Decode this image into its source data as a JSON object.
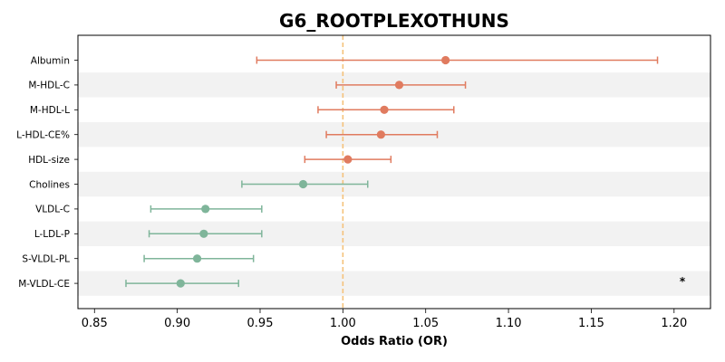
{
  "chart_data": {
    "type": "forest",
    "title": "G6_ROOTPLEXOTHUNS",
    "xlabel": "Odds Ratio (OR)",
    "ylabel": "",
    "xlim": [
      0.84,
      1.222
    ],
    "xticks": [
      0.85,
      0.9,
      0.95,
      1.0,
      1.05,
      1.1,
      1.15,
      1.2
    ],
    "xtick_labels": [
      "0.85",
      "0.90",
      "0.95",
      "1.00",
      "1.05",
      "1.10",
      "1.15",
      "1.20"
    ],
    "reference_line": 1.0,
    "grid": false,
    "row_shading": "alternating",
    "colors": {
      "positive": "#E07B5F",
      "negative": "#7FB59A",
      "reference_line": "#F5C27A",
      "shading": "#F2F2F2"
    },
    "rows": [
      {
        "label": "Albumin",
        "or": 1.062,
        "lower": 0.948,
        "upper": 1.19,
        "group": "positive"
      },
      {
        "label": "M-HDL-C",
        "or": 1.034,
        "lower": 0.996,
        "upper": 1.074,
        "group": "positive"
      },
      {
        "label": "M-HDL-L",
        "or": 1.025,
        "lower": 0.985,
        "upper": 1.067,
        "group": "positive"
      },
      {
        "label": "L-HDL-CE%",
        "or": 1.023,
        "lower": 0.99,
        "upper": 1.057,
        "group": "positive"
      },
      {
        "label": "HDL-size",
        "or": 1.003,
        "lower": 0.977,
        "upper": 1.029,
        "group": "positive"
      },
      {
        "label": "Cholines",
        "or": 0.976,
        "lower": 0.939,
        "upper": 1.015,
        "group": "negative"
      },
      {
        "label": "VLDL-C",
        "or": 0.917,
        "lower": 0.884,
        "upper": 0.951,
        "group": "negative"
      },
      {
        "label": "L-LDL-P",
        "or": 0.916,
        "lower": 0.883,
        "upper": 0.951,
        "group": "negative"
      },
      {
        "label": "S-VLDL-PL",
        "or": 0.912,
        "lower": 0.88,
        "upper": 0.946,
        "group": "negative"
      },
      {
        "label": "M-VLDL-CE",
        "or": 0.902,
        "lower": 0.869,
        "upper": 0.937,
        "group": "negative",
        "annotation": "*"
      }
    ]
  }
}
